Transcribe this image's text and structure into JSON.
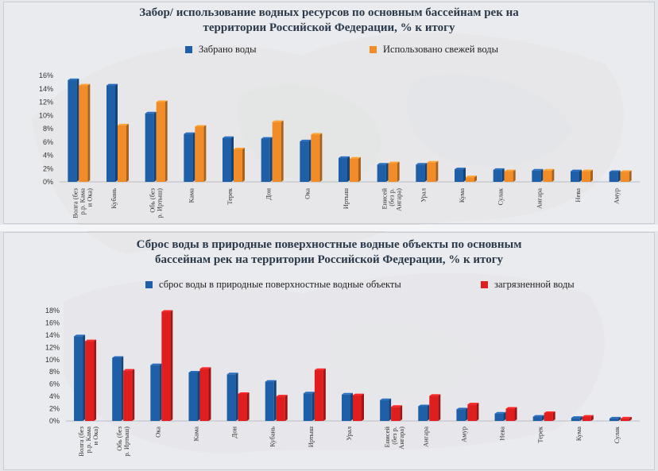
{
  "charts": [
    {
      "title_line1": "Забор/ использование водных ресурсов по основным бассейнам рек на",
      "title_line2": "территории Российской Федерации, % к итогу",
      "legend": [
        {
          "label": "Забрано воды",
          "color": "#1f5fa8"
        },
        {
          "label": "Использовано свежей воды",
          "color": "#f28c28"
        }
      ]
    },
    {
      "title_line1": "Сброс воды в природные поверхностные водные объекты по основным",
      "title_line2": "бассейнам рек на территории Российской Федерации, %  к итогу",
      "legend": [
        {
          "label": "сброс воды в природные поверхностные водные объекты",
          "color": "#1f5fa8"
        },
        {
          "label": "загрязненной воды",
          "color": "#e01e1e"
        }
      ]
    }
  ],
  "chart_data": [
    {
      "type": "bar",
      "title": "Забор/ использование водных ресурсов по основным бассейнам рек на территории Российской Федерации, % к итогу",
      "categories": [
        [
          "Волга (без",
          "р.р. Кама",
          "и Ока)"
        ],
        [
          "Кубань"
        ],
        [
          "Обь (без",
          "р. Иртыш)"
        ],
        [
          "Кама"
        ],
        [
          "Терек"
        ],
        [
          "Дон"
        ],
        [
          "Ока"
        ],
        [
          "Иртыш"
        ],
        [
          "Енисей",
          "(без р.",
          "Ангара)"
        ],
        [
          "Урал"
        ],
        [
          "Кума"
        ],
        [
          "Сулак"
        ],
        [
          "Ангара"
        ],
        [
          "Нева"
        ],
        [
          "Амур"
        ]
      ],
      "series": [
        {
          "name": "Забрано воды",
          "color": "#1f5fa8",
          "values": [
            15.3,
            14.5,
            10.3,
            7.2,
            6.6,
            6.5,
            6.1,
            3.6,
            2.6,
            2.6,
            1.9,
            1.8,
            1.7,
            1.6,
            1.5
          ]
        },
        {
          "name": "Использовано свежей воды",
          "color": "#f28c28",
          "values": [
            14.5,
            8.5,
            12.0,
            8.3,
            4.9,
            9.0,
            7.1,
            3.5,
            2.8,
            2.9,
            0.7,
            1.6,
            1.7,
            1.6,
            1.5
          ]
        }
      ],
      "ylim": [
        0,
        16
      ],
      "yticks": [
        "0%",
        "2%",
        "4%",
        "6%",
        "8%",
        "10%",
        "12%",
        "14%",
        "16%"
      ],
      "xlabel": "",
      "ylabel": "",
      "grid": false
    },
    {
      "type": "bar",
      "title": "Сброс воды в природные поверхностные водные объекты по основным бассейнам рек на территории Российской Федерации, %  к итогу",
      "categories": [
        [
          "Волга (без",
          "р.р. Кама",
          "и Ока)"
        ],
        [
          "Обь (без",
          "р. Иртыш)"
        ],
        [
          "Ока"
        ],
        [
          "Кама"
        ],
        [
          "Дон"
        ],
        [
          "Кубань"
        ],
        [
          "Иртыш"
        ],
        [
          "Урал"
        ],
        [
          "Енисей",
          "(без р.",
          "Ангара)"
        ],
        [
          "Ангара"
        ],
        [
          "Амур"
        ],
        [
          "Нева"
        ],
        [
          "Терек"
        ],
        [
          "Кума"
        ],
        [
          "Сулак"
        ]
      ],
      "series": [
        {
          "name": "сброс воды в природные поверхностные водные объекты",
          "color": "#1f5fa8",
          "values": [
            13.8,
            10.3,
            9.1,
            7.9,
            7.6,
            6.4,
            4.5,
            4.3,
            3.4,
            2.4,
            1.9,
            1.2,
            0.7,
            0.5,
            0.4
          ]
        },
        {
          "name": "загрязненной воды",
          "color": "#e01e1e",
          "values": [
            13.0,
            8.2,
            17.8,
            8.5,
            4.4,
            4.0,
            8.3,
            4.2,
            2.3,
            4.1,
            2.7,
            2.0,
            1.3,
            0.7,
            0.4
          ]
        }
      ],
      "ylim": [
        0,
        18
      ],
      "yticks": [
        "0%",
        "2%",
        "4%",
        "6%",
        "8%",
        "10%",
        "12%",
        "14%",
        "16%",
        "18%"
      ],
      "xlabel": "",
      "ylabel": "",
      "grid": false
    }
  ]
}
